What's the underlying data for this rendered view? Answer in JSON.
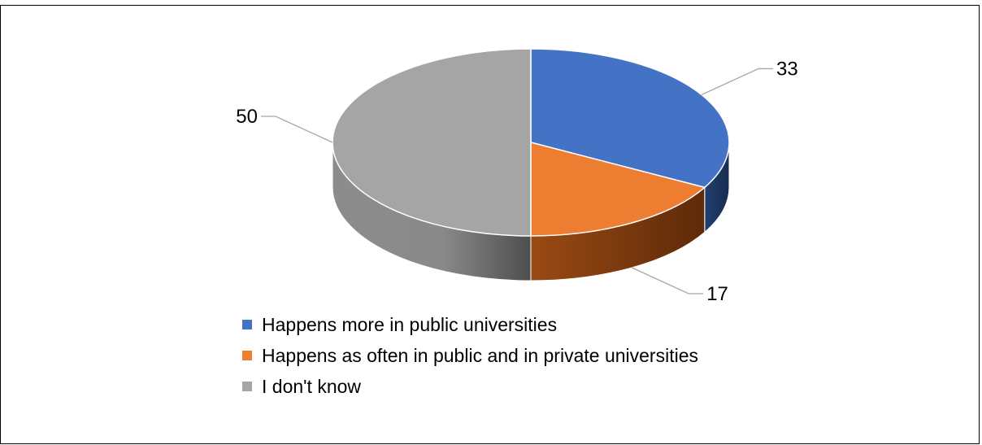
{
  "chart_data": {
    "type": "pie",
    "title": "",
    "series": [
      {
        "name": "Happens more in public universities",
        "value": 33,
        "label": "33",
        "color": "#4472C4",
        "side_color": "#1F3864"
      },
      {
        "name": "Happens as often in public and in private universities",
        "value": 17,
        "label": "17",
        "color": "#ED7D31",
        "side_color": "#843C0C"
      },
      {
        "name": "I don't know",
        "value": 50,
        "label": "50",
        "color": "#A5A5A5",
        "side_color": "#6E6E6E"
      }
    ],
    "legend_position": "bottom",
    "style": "3d"
  }
}
